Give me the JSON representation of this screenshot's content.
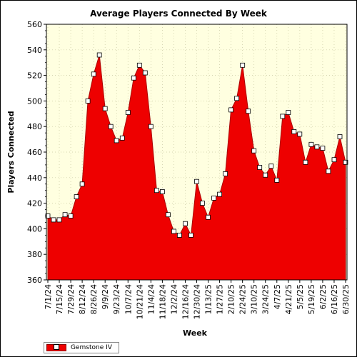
{
  "chart_data": {
    "type": "area",
    "title": "Average Players Connected By Week",
    "xlabel": "Week",
    "ylabel": "Players Connected",
    "ylim": [
      360,
      560
    ],
    "yticks": [
      360,
      380,
      400,
      420,
      440,
      460,
      480,
      500,
      520,
      540,
      560
    ],
    "x_tick_labels": [
      "7/1/24",
      "7/15/24",
      "7/29/24",
      "8/12/24",
      "8/26/24",
      "9/9/24",
      "9/23/24",
      "10/7/24",
      "10/21/24",
      "11/4/24",
      "11/18/24",
      "12/2/24",
      "12/16/24",
      "12/30/24",
      "1/13/25",
      "1/27/25",
      "2/10/25",
      "2/24/25",
      "3/10/25",
      "3/24/25",
      "4/7/25",
      "4/21/25",
      "5/5/25",
      "5/19/25",
      "6/2/25",
      "6/16/25",
      "6/30/25"
    ],
    "grid": true,
    "legend_position": "bottom-left",
    "series": [
      {
        "name": "Gemstone IV",
        "color": "#ee0000",
        "values": [
          410,
          407,
          407,
          411,
          410,
          425,
          435,
          500,
          521,
          536,
          494,
          480,
          469,
          471,
          491,
          518,
          528,
          522,
          480,
          430,
          429,
          411,
          398,
          395,
          404,
          395,
          437,
          420,
          409,
          424,
          427,
          443,
          493,
          502,
          528,
          492,
          461,
          448,
          442,
          449,
          438,
          488,
          491,
          476,
          474,
          452,
          466,
          464,
          463,
          445,
          454,
          472,
          452
        ]
      }
    ]
  },
  "colors": {
    "plot_background": "#ffffe0",
    "fill": "#ee0000",
    "grid": "#c8c8a0"
  }
}
